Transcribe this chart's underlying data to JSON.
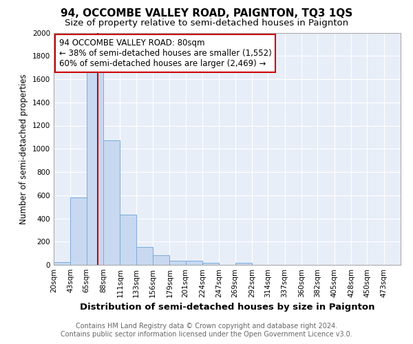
{
  "title": "94, OCCOMBE VALLEY ROAD, PAIGNTON, TQ3 1QS",
  "subtitle": "Size of property relative to semi-detached houses in Paignton",
  "xlabel": "Distribution of semi-detached houses by size in Paignton",
  "ylabel": "Number of semi-detached properties",
  "bar_color": "#c8d8f0",
  "bar_edge_color": "#7aabda",
  "plot_bg_color": "#e8eef8",
  "fig_bg_color": "#ffffff",
  "grid_color": "#ffffff",
  "bin_edges": [
    20,
    43,
    65,
    88,
    111,
    133,
    156,
    179,
    201,
    224,
    247,
    269,
    292,
    314,
    337,
    360,
    382,
    405,
    428,
    450,
    473,
    496
  ],
  "bin_labels": [
    "20sqm",
    "43sqm",
    "65sqm",
    "88sqm",
    "111sqm",
    "133sqm",
    "156sqm",
    "179sqm",
    "201sqm",
    "224sqm",
    "247sqm",
    "269sqm",
    "292sqm",
    "314sqm",
    "337sqm",
    "360sqm",
    "382sqm",
    "405sqm",
    "428sqm",
    "450sqm",
    "473sqm"
  ],
  "bar_heights": [
    25,
    580,
    1670,
    1070,
    430,
    155,
    85,
    35,
    35,
    20,
    0,
    20,
    0,
    0,
    0,
    0,
    0,
    0,
    0,
    0,
    0
  ],
  "property_size": 80,
  "red_line_color": "#cc0000",
  "annotation_box_color": "#ffffff",
  "annotation_border_color": "#cc0000",
  "annotation_text_line1": "94 OCCOMBE VALLEY ROAD: 80sqm",
  "annotation_text_line2": "← 38% of semi-detached houses are smaller (1,552)",
  "annotation_text_line3": "60% of semi-detached houses are larger (2,469) →",
  "ylim": [
    0,
    2000
  ],
  "yticks": [
    0,
    200,
    400,
    600,
    800,
    1000,
    1200,
    1400,
    1600,
    1800,
    2000
  ],
  "footer_line1": "Contains HM Land Registry data © Crown copyright and database right 2024.",
  "footer_line2": "Contains public sector information licensed under the Open Government Licence v3.0.",
  "title_fontsize": 11,
  "subtitle_fontsize": 9.5,
  "xlabel_fontsize": 9.5,
  "ylabel_fontsize": 8.5,
  "tick_fontsize": 7.5,
  "footer_fontsize": 7,
  "annotation_fontsize": 8.5
}
